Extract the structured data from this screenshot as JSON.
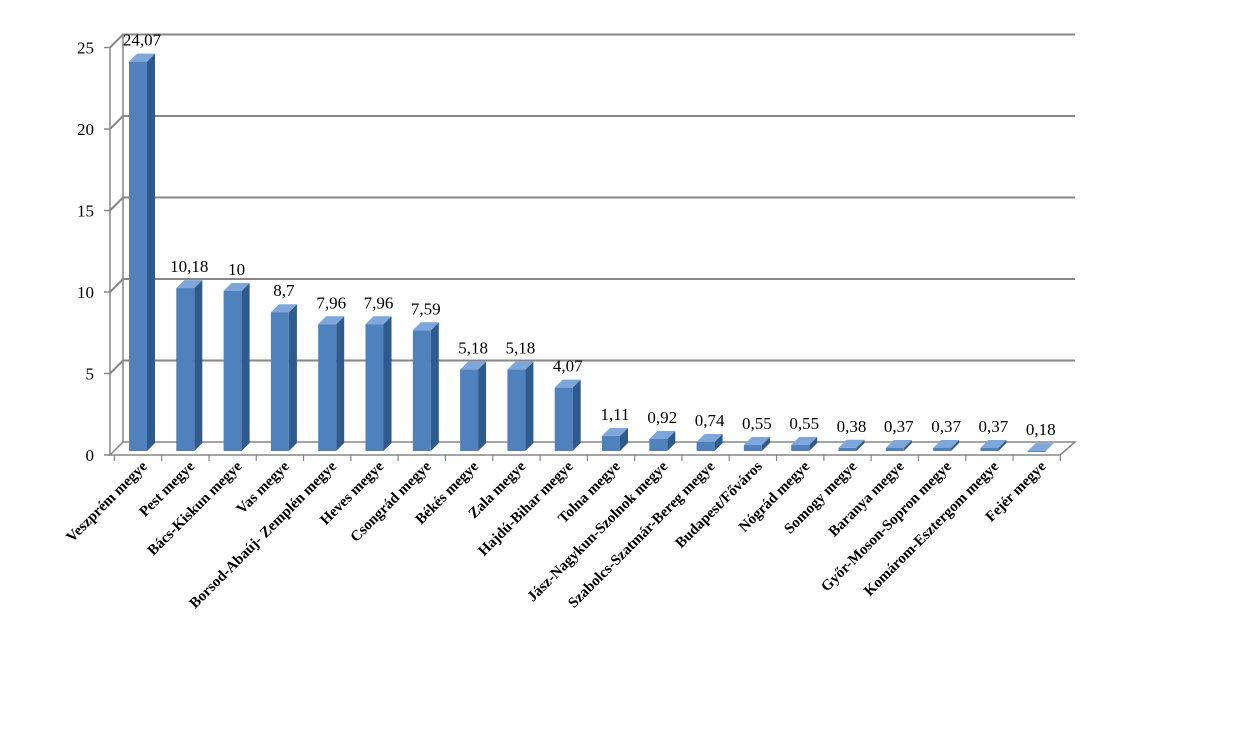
{
  "chart_data": {
    "type": "bar",
    "title": "",
    "xlabel": "",
    "ylabel": "",
    "ylim": [
      0,
      25
    ],
    "yticks": [
      "0",
      "5",
      "10",
      "15",
      "20",
      "25"
    ],
    "grid": true,
    "colors": {
      "bar_front": "#4f81bd",
      "bar_side": "#2e5a8e",
      "bar_top": "#7ea6d8",
      "grid": "#868686"
    },
    "categories": [
      "Veszprém megye",
      "Pest megye",
      "Bács-Kiskun megye",
      "Vas megye",
      "Borsod-Abaúj- Zemplén megye",
      "Heves megye",
      "Csongrád megye",
      "Békés megye",
      "Zala megye",
      "Hajdú-Bihar megye",
      "Tolna megye",
      "Jász-Nagykun-Szolnok megye",
      "Szabolcs-Szatmár-Bereg megye",
      "Budapest/Főváros",
      "Nógrád megye",
      "Somogy megye",
      "Baranya megye",
      "Győr-Moson-Sopron megye",
      "Komárom-Esztergom megye",
      "Fejér megye"
    ],
    "values": [
      24.07,
      10.18,
      10,
      8.7,
      7.96,
      7.96,
      7.59,
      5.18,
      5.18,
      4.07,
      1.11,
      0.92,
      0.74,
      0.55,
      0.55,
      0.38,
      0.37,
      0.37,
      0.37,
      0.18
    ],
    "data_labels": [
      "24,07",
      "10,18",
      "10",
      "8,7",
      "7,96",
      "7,96",
      "7,59",
      "5,18",
      "5,18",
      "4,07",
      "1,11",
      "0,92",
      "0,74",
      "0,55",
      "0,55",
      "0,38",
      "0,37",
      "0,37",
      "0,37",
      "0,18"
    ]
  }
}
